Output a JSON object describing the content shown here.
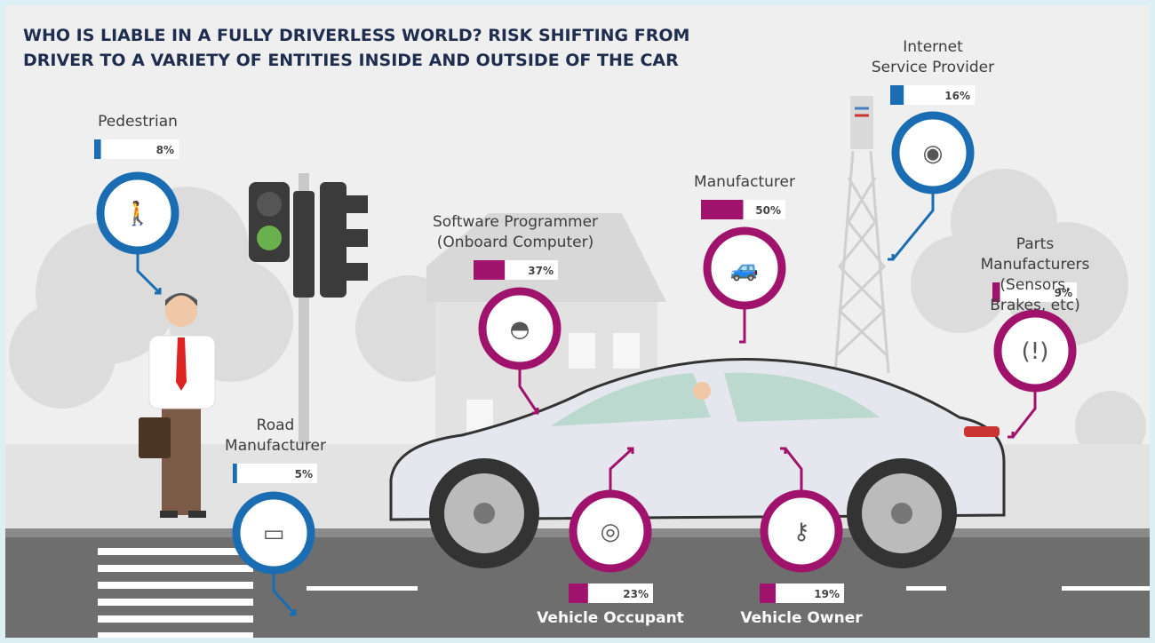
{
  "chart_data": {
    "type": "infographic",
    "title": "WHO IS LIABLE IN A FULLY DRIVERLESS WORLD? RISK SHIFTING FROM DRIVER TO A VARIETY OF ENTITIES INSIDE AND OUTSIDE OF THE CAR",
    "categories": [
      "Pedestrian",
      "Road\nManufacturer",
      "Software Programmer\n(Onboard Computer)",
      "Manufacturer",
      "Internet\nService Provider",
      "Parts Manufacturers\n(Sensors, Brakes, etc)",
      "Vehicle Occupant",
      "Vehicle Owner"
    ],
    "values": [
      8,
      5,
      37,
      50,
      16,
      9,
      23,
      19
    ],
    "value_labels": [
      "8%",
      "5%",
      "37%",
      "50%",
      "16%",
      "9%",
      "23%",
      "19%"
    ],
    "colors": [
      "#1a6db3",
      "#1a6db3",
      "#a0136c",
      "#a0136c",
      "#1a6db3",
      "#a0136c",
      "#a0136c",
      "#a0136c"
    ],
    "xlim": [
      0,
      100
    ]
  }
}
